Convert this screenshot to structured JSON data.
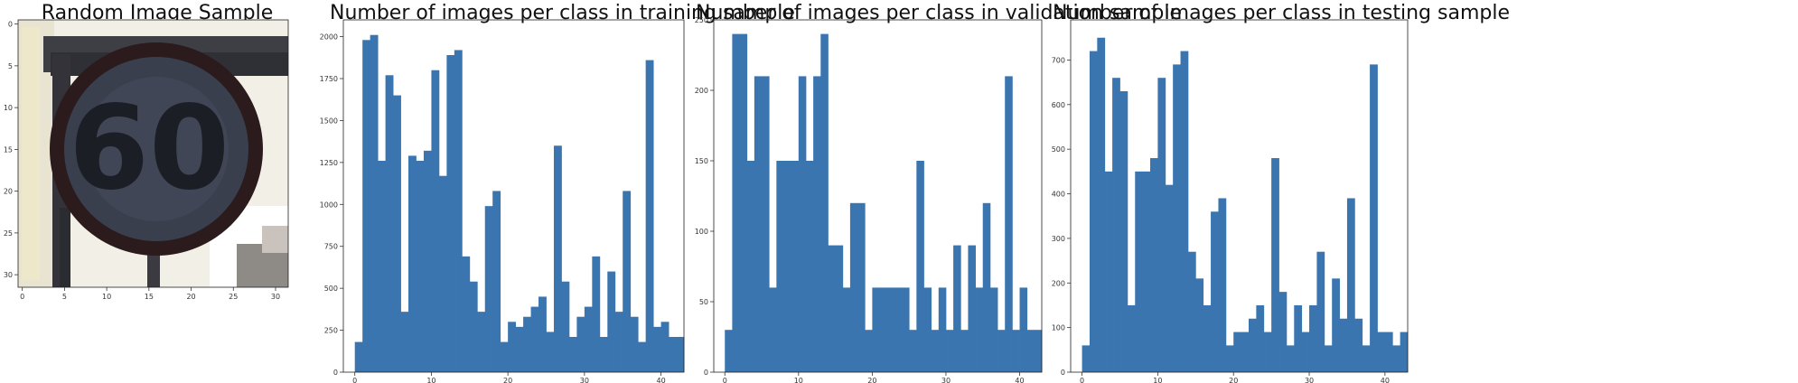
{
  "image_panel": {
    "title": "Random Image Sample",
    "sign_text": "60",
    "x_ticks": [
      "0",
      "5",
      "10",
      "15",
      "20",
      "25",
      "30"
    ],
    "y_ticks": [
      "0",
      "5",
      "10",
      "15",
      "20",
      "25",
      "30"
    ]
  },
  "chart_data": [
    {
      "type": "bar",
      "title": "Number of images per class in training sample",
      "xlabel": "",
      "ylabel": "",
      "bar_color": "#3a75b0",
      "x_range": [
        -1.5,
        43
      ],
      "ylim": [
        0,
        2100
      ],
      "x_ticks": [
        0,
        10,
        20,
        30,
        40
      ],
      "y_ticks": [
        0,
        250,
        500,
        750,
        1000,
        1250,
        1500,
        1750,
        2000
      ],
      "values": [
        180,
        1980,
        2010,
        1260,
        1770,
        1650,
        360,
        1290,
        1260,
        1320,
        1800,
        1170,
        1890,
        1920,
        690,
        540,
        360,
        990,
        1080,
        180,
        300,
        270,
        330,
        390,
        450,
        240,
        1350,
        540,
        210,
        330,
        390,
        690,
        210,
        600,
        360,
        1080,
        330,
        180,
        1860,
        270,
        300,
        210,
        210
      ]
    },
    {
      "type": "bar",
      "title": "Number of images per class in validation sample",
      "xlabel": "",
      "ylabel": "",
      "bar_color": "#3a75b0",
      "x_range": [
        -1.5,
        43
      ],
      "ylim": [
        0,
        250
      ],
      "x_ticks": [
        0,
        10,
        20,
        30,
        40
      ],
      "y_ticks": [
        0,
        50,
        100,
        150,
        200,
        250
      ],
      "values": [
        30,
        240,
        240,
        150,
        210,
        210,
        60,
        150,
        150,
        150,
        210,
        150,
        210,
        240,
        90,
        90,
        60,
        120,
        120,
        30,
        60,
        60,
        60,
        60,
        60,
        30,
        150,
        60,
        30,
        60,
        30,
        90,
        30,
        90,
        60,
        120,
        60,
        30,
        210,
        30,
        60,
        30,
        30
      ]
    },
    {
      "type": "bar",
      "title": "Number of images per class in testing sample",
      "xlabel": "",
      "ylabel": "",
      "bar_color": "#3a75b0",
      "x_range": [
        -1.5,
        43
      ],
      "ylim": [
        0,
        790
      ],
      "x_ticks": [
        0,
        10,
        20,
        30,
        40
      ],
      "y_ticks": [
        0,
        100,
        200,
        300,
        400,
        500,
        600,
        700
      ],
      "values": [
        60,
        720,
        750,
        450,
        660,
        630,
        150,
        450,
        450,
        480,
        660,
        420,
        690,
        720,
        270,
        210,
        150,
        360,
        390,
        60,
        90,
        90,
        120,
        150,
        90,
        480,
        180,
        60,
        150,
        90,
        150,
        270,
        60,
        210,
        120,
        390,
        120,
        60,
        690,
        90,
        90,
        60,
        90
      ]
    }
  ]
}
